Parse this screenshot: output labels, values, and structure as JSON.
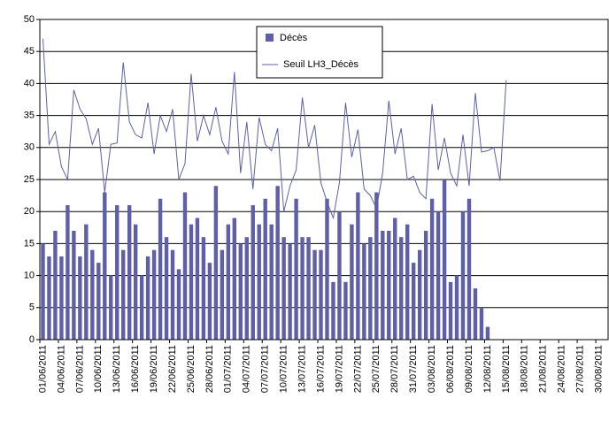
{
  "chart_data": {
    "type": "bar-line",
    "categories": [
      "01/06/2011",
      null,
      null,
      "04/06/2011",
      null,
      null,
      "07/06/2011",
      null,
      null,
      "10/06/2011",
      null,
      null,
      "13/06/2011",
      null,
      null,
      "16/06/2011",
      null,
      null,
      "19/06/2011",
      null,
      null,
      "22/06/2011",
      null,
      null,
      "25/06/2011",
      null,
      null,
      "28/06/2011",
      null,
      null,
      "01/07/2011",
      null,
      null,
      "04/07/2011",
      null,
      null,
      "07/07/2011",
      null,
      null,
      "10/07/2011",
      null,
      null,
      "13/07/2011",
      null,
      null,
      "16/07/2011",
      null,
      null,
      "19/07/2011",
      null,
      null,
      "22/07/2011",
      null,
      null,
      "25/07/2011",
      null,
      null,
      "28/07/2011",
      null,
      null,
      "31/07/2011",
      null,
      null,
      "03/08/2011",
      null,
      null,
      "06/08/2011",
      null,
      null,
      "09/08/2011",
      null,
      null,
      "12/08/2011",
      null,
      null,
      "15/08/2011",
      null,
      null,
      "18/08/2011",
      null,
      null,
      "21/08/2011",
      null,
      null,
      "24/08/2011",
      null,
      null,
      "27/08/2011",
      null,
      null,
      "30/08/2011",
      null
    ],
    "series": [
      {
        "name": "Décès",
        "kind": "bar",
        "color": "#5f5fa8",
        "values": [
          15,
          13,
          17,
          13,
          21,
          17,
          13,
          18,
          14,
          12,
          23,
          10,
          21,
          14,
          21,
          18,
          10,
          13,
          14,
          22,
          16,
          14,
          11,
          23,
          18,
          19,
          16,
          12,
          24,
          14,
          18,
          19,
          15,
          16,
          21,
          18,
          22,
          18,
          24,
          16,
          15,
          22,
          16,
          16,
          14,
          14,
          22,
          9,
          20,
          9,
          18,
          23,
          15,
          16,
          23,
          17,
          17,
          19,
          16,
          18,
          12,
          14,
          17,
          22,
          20,
          25,
          9,
          10,
          20,
          22,
          8,
          5,
          2,
          null,
          null,
          null,
          null,
          null,
          null,
          null,
          null,
          null,
          null,
          null,
          null,
          null,
          null,
          null,
          null,
          null,
          null,
          null
        ]
      },
      {
        "name": "Seuil LH3_Décès",
        "kind": "line",
        "color": "#5f5fa8",
        "values": [
          47,
          30.5,
          32.5,
          27,
          25,
          39,
          36,
          34.5,
          30.5,
          33,
          23,
          30.5,
          30.7,
          43.3,
          34,
          32,
          31.5,
          37,
          29,
          35,
          32.5,
          36,
          25,
          27.5,
          41.5,
          31,
          35,
          32,
          36.3,
          31,
          29,
          41.8,
          26,
          34,
          23.5,
          34.7,
          30.5,
          29.5,
          33,
          20,
          24,
          26.5,
          37.8,
          30,
          33.5,
          24.5,
          21.5,
          19,
          24.5,
          37,
          28.5,
          32.8,
          23.5,
          22.5,
          20.5,
          26,
          37.3,
          29,
          33,
          25,
          25.5,
          23,
          22,
          36.8,
          26.5,
          31.5,
          26,
          24,
          32,
          24,
          38.5,
          29.3,
          29.5,
          30,
          24.8,
          40.5,
          null,
          null,
          null,
          null,
          null,
          null,
          null,
          null,
          null,
          null,
          null,
          null,
          null,
          null,
          null,
          null
        ]
      }
    ],
    "ylim": [
      0,
      50
    ],
    "yticks": [
      0,
      5,
      10,
      15,
      20,
      25,
      30,
      35,
      40,
      45,
      50
    ],
    "grid": true
  }
}
